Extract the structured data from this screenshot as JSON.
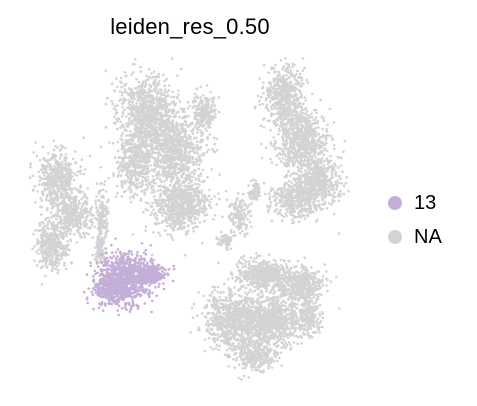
{
  "chart_data": {
    "type": "scatter",
    "title": "leiden_res_0.50",
    "xlabel": "",
    "ylabel": "",
    "grid": false,
    "legend_position": "right",
    "categories": [
      "13",
      "NA"
    ],
    "colors": {
      "13": "#c3afd7",
      "NA": "#d3d3d3"
    },
    "series": [
      {
        "name": "13",
        "color": "#c3afd7",
        "highlighted": true
      },
      {
        "name": "NA",
        "color": "#d3d3d3",
        "highlighted": false
      }
    ]
  }
}
